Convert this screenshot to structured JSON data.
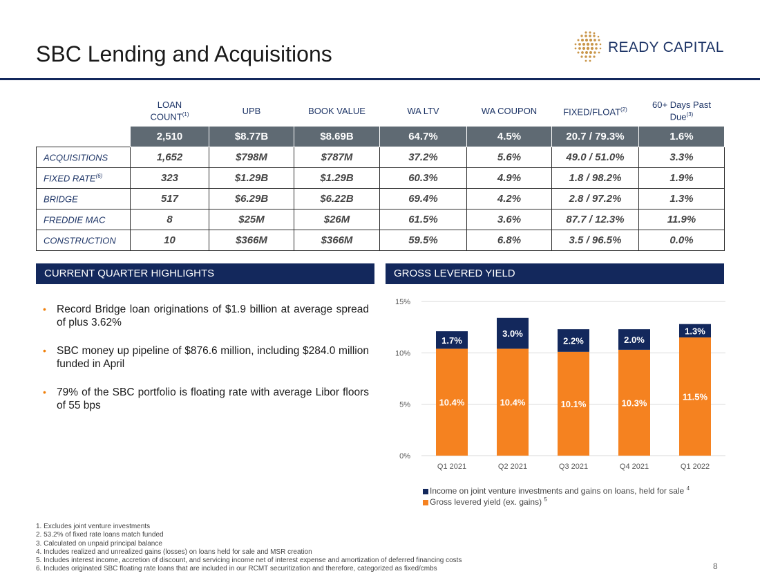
{
  "title": "SBC Lending and Acquisitions",
  "logo": {
    "text": "READY CAPITAL"
  },
  "table": {
    "headers": [
      {
        "label": "LOAN COUNT",
        "sup": "(1)"
      },
      {
        "label": "UPB",
        "sup": ""
      },
      {
        "label": "BOOK VALUE",
        "sup": ""
      },
      {
        "label": "WA LTV",
        "sup": ""
      },
      {
        "label": "WA COUPON",
        "sup": ""
      },
      {
        "label": "FIXED/FLOAT",
        "sup": "(2)"
      },
      {
        "label": "60+ Days Past Due",
        "sup": "(3)"
      }
    ],
    "totals": [
      "2,510",
      "$8.77B",
      "$8.69B",
      "64.7%",
      "4.5%",
      "20.7 / 79.3%",
      "1.6%"
    ],
    "rows": [
      {
        "label": "ACQUISITIONS",
        "sup": "",
        "cells": [
          "1,652",
          "$798M",
          "$787M",
          "37.2%",
          "5.6%",
          "49.0 / 51.0%",
          "3.3%"
        ]
      },
      {
        "label": "FIXED RATE",
        "sup": "(6)",
        "cells": [
          "323",
          "$1.29B",
          "$1.29B",
          "60.3%",
          "4.9%",
          "1.8 / 98.2%",
          "1.9%"
        ]
      },
      {
        "label": "BRIDGE",
        "sup": "",
        "cells": [
          "517",
          "$6.29B",
          "$6.22B",
          "69.4%",
          "4.2%",
          "2.8 / 97.2%",
          "1.3%"
        ]
      },
      {
        "label": "FREDDIE MAC",
        "sup": "",
        "cells": [
          "8",
          "$25M",
          "$26M",
          "61.5%",
          "3.6%",
          "87.7 / 12.3%",
          "11.9%"
        ]
      },
      {
        "label": "CONSTRUCTION",
        "sup": "",
        "cells": [
          "10",
          "$366M",
          "$366M",
          "59.5%",
          "6.8%",
          "3.5 / 96.5%",
          "0.0%"
        ]
      }
    ]
  },
  "highlights": {
    "heading": "CURRENT QUARTER HIGHLIGHTS",
    "items": [
      "Record Bridge loan originations of $1.9 billion at average spread of plus 3.62%",
      "SBC money up pipeline of $876.6 million, including $284.0 million funded in April",
      "79% of the SBC portfolio is floating rate with average Libor floors of 55 bps"
    ]
  },
  "chart_heading": "GROSS LEVERED YIELD",
  "chart_data": {
    "type": "bar",
    "stacked": true,
    "categories": [
      "Q1 2021",
      "Q2 2021",
      "Q3 2021",
      "Q4 2021",
      "Q1 2022"
    ],
    "series": [
      {
        "name": "Gross levered yield (ex. gains)",
        "sup": "5",
        "values": [
          10.4,
          10.4,
          10.1,
          10.3,
          11.5
        ],
        "labels": [
          "10.4%",
          "10.4%",
          "10.1%",
          "10.3%",
          "11.5%"
        ],
        "color": "#f58220"
      },
      {
        "name": "Income on joint venture investments and gains on loans, held for sale",
        "sup": "4",
        "values": [
          1.7,
          3.0,
          2.2,
          2.0,
          1.3
        ],
        "labels": [
          "1.7%",
          "3.0%",
          "2.2%",
          "2.0%",
          "1.3%"
        ],
        "color": "#13285c"
      }
    ],
    "yticks": [
      0,
      5,
      10,
      15
    ],
    "ytick_labels": [
      "0%",
      "5%",
      "10%",
      "15%"
    ],
    "ylim": [
      0,
      15
    ],
    "grid": true,
    "legend_position": "bottom"
  },
  "footnotes": [
    "1. Excludes joint venture investments",
    "2. 53.2% of fixed rate loans match funded",
    "3. Calculated on unpaid principal balance",
    "4. Includes realized and unrealized gains (losses) on loans held for sale and MSR creation",
    "5. Includes interest income, accretion of discount, and servicing income net of interest expense and amortization of deferred financing costs",
    "6. Includes originated SBC floating rate loans that are included in our RCMT securitization and therefore, categorized as fixed/cmbs"
  ],
  "page_number": "8"
}
